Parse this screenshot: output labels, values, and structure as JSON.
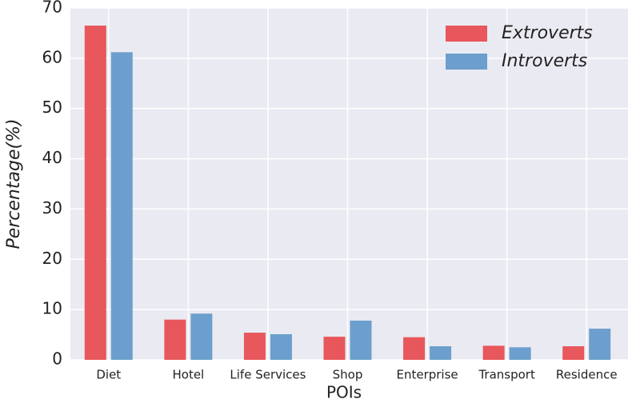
{
  "chart_data": {
    "type": "bar",
    "x_label": "POIs",
    "y_label": "Percentage(%)",
    "categories": [
      "Diet",
      "Hotel",
      "Life Services",
      "Shop",
      "Enterprise",
      "Transport",
      "Residence"
    ],
    "series": [
      {
        "name": "Extroverts",
        "color": "#e8575b",
        "values": [
          66.5,
          8.0,
          5.4,
          4.6,
          4.5,
          2.8,
          2.7
        ]
      },
      {
        "name": "Introverts",
        "color": "#6c9fcd",
        "values": [
          61.2,
          9.2,
          5.1,
          7.8,
          2.7,
          2.5,
          6.2
        ]
      }
    ],
    "ylim": [
      0,
      70
    ],
    "yticks": [
      0,
      10,
      20,
      30,
      40,
      50,
      60,
      70
    ],
    "grid": true,
    "legend": "upper right"
  }
}
